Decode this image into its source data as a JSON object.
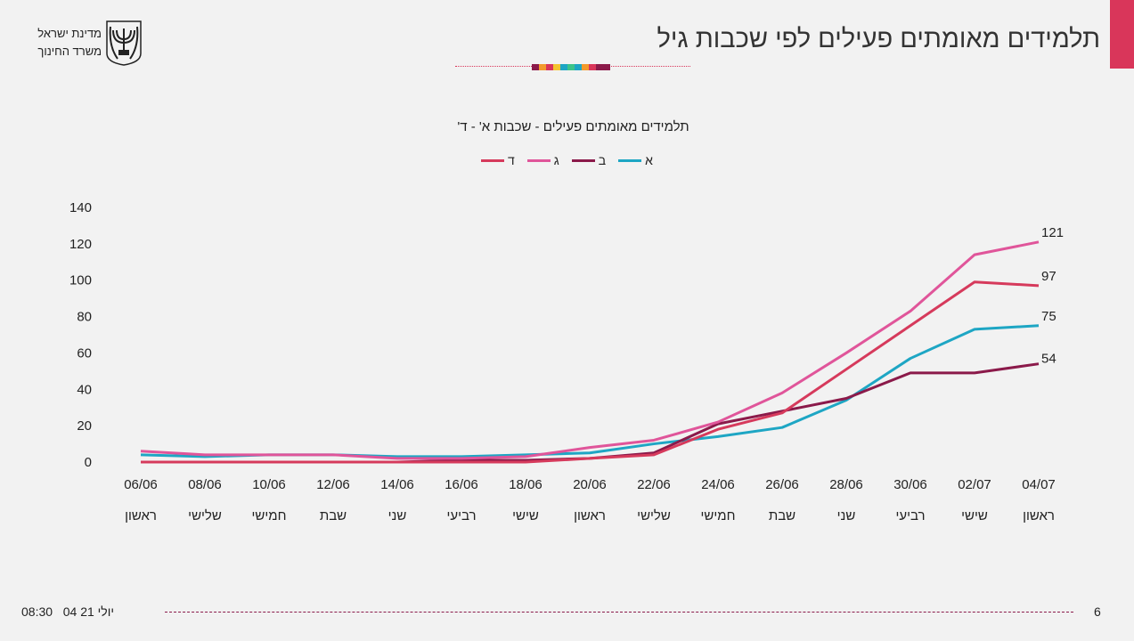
{
  "header": {
    "title": "תלמידים מאומתים פעילים לפי שכבות גיל",
    "logo_line1": "מדינת ישראל",
    "logo_line2": "משרד החינוך",
    "emblem_text": "ישראל",
    "accent": "#d9365a"
  },
  "footer": {
    "date": "04 יולי 21",
    "time": "08:30",
    "page": "6"
  },
  "chart_data": {
    "type": "line",
    "title": "תלמידים מאומתים פעילים - שכבות א' - ד'",
    "categories": [
      "06/06",
      "08/06",
      "10/06",
      "12/06",
      "14/06",
      "16/06",
      "18/06",
      "20/06",
      "22/06",
      "24/06",
      "26/06",
      "28/06",
      "30/06",
      "02/07",
      "04/07"
    ],
    "weekdays": [
      "ראשון",
      "שלישי",
      "חמישי",
      "שבת",
      "שני",
      "רביעי",
      "שישי",
      "ראשון",
      "שלישי",
      "חמישי",
      "שבת",
      "שני",
      "רביעי",
      "שישי",
      "ראשון"
    ],
    "ylim": [
      0,
      140
    ],
    "yticks": [
      0,
      20,
      40,
      60,
      80,
      100,
      120,
      140
    ],
    "grid": false,
    "legend": "top",
    "series": [
      {
        "name": "א",
        "color": "#1ea6c4",
        "values": [
          4,
          3,
          4,
          4,
          3,
          3,
          4,
          5,
          10,
          14,
          19,
          34,
          57,
          73,
          75
        ]
      },
      {
        "name": "ב",
        "color": "#8b1a4a",
        "values": [
          0,
          0,
          0,
          0,
          0,
          1,
          1,
          2,
          5,
          21,
          28,
          35,
          49,
          49,
          54
        ]
      },
      {
        "name": "ג",
        "color": "#e0559a",
        "values": [
          6,
          4,
          4,
          4,
          2,
          2,
          3,
          8,
          12,
          22,
          38,
          60,
          83,
          114,
          121
        ]
      },
      {
        "name": "ד",
        "color": "#d63a5c",
        "values": [
          0,
          0,
          0,
          0,
          0,
          0,
          0,
          2,
          4,
          18,
          27,
          51,
          75,
          99,
          97
        ]
      }
    ],
    "end_labels": [
      "75",
      "54",
      "121",
      "97"
    ]
  }
}
